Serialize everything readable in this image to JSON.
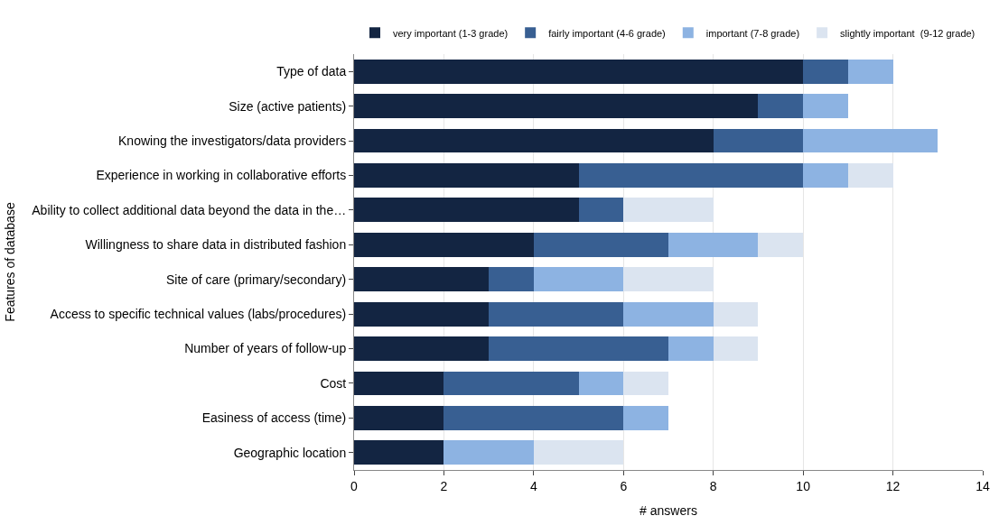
{
  "chart_data": {
    "type": "bar",
    "orientation": "horizontal",
    "stacked": true,
    "xlabel": "# answers",
    "ylabel": "Features of database",
    "categories": [
      "Type of data",
      "Size (active patients)",
      "Knowing the investigators/data providers",
      "Experience in working in collaborative efforts",
      "Ability to collect additional data beyond the data in the…",
      "Willingness to share data in distributed fashion",
      "Site of care (primary/secondary)",
      "Access to specific technical values (labs/procedures)",
      "Number of years of follow-up",
      "Cost",
      "Easiness of access (time)",
      "Geographic location"
    ],
    "series": [
      {
        "name": "very important (1-3 grade)",
        "color": "#132542",
        "values": [
          10,
          9,
          8,
          5,
          5,
          4,
          3,
          3,
          3,
          2,
          2,
          2
        ]
      },
      {
        "name": "fairly important (4-6 grade)",
        "color": "#385f92",
        "values": [
          1,
          1,
          2,
          5,
          1,
          3,
          1,
          3,
          4,
          3,
          4,
          0
        ]
      },
      {
        "name": "important (7-8 grade)",
        "color": "#8db3e2",
        "values": [
          1,
          1,
          3,
          1,
          0,
          2,
          2,
          2,
          1,
          1,
          1,
          2
        ]
      },
      {
        "name": "slightly important  (9-12 grade)",
        "color": "#dbe4f0",
        "values": [
          0,
          0,
          0,
          1,
          2,
          1,
          2,
          1,
          1,
          1,
          0,
          2
        ]
      }
    ],
    "xlim": [
      0,
      14
    ],
    "xticks": [
      0,
      2,
      4,
      6,
      8,
      10,
      12,
      14
    ],
    "grid": "x",
    "legend": "top"
  }
}
